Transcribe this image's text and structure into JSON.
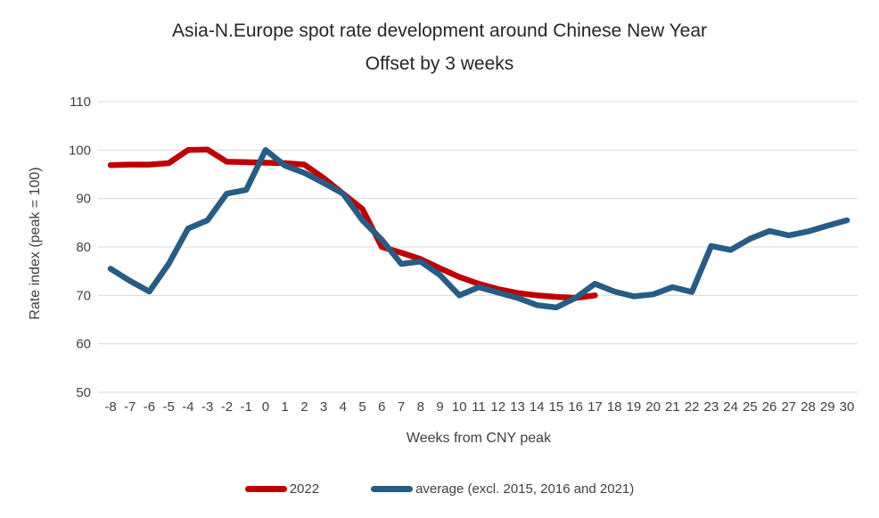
{
  "title": {
    "line1": "Asia-N.Europe spot rate development around Chinese New Year",
    "line2": "Offset by 3 weeks"
  },
  "chart_data": {
    "type": "line",
    "title": "Asia-N.Europe spot rate development around Chinese New Year — Offset by 3 weeks",
    "xlabel": "Weeks from CNY peak",
    "ylabel": "Rate index (peak = 100)",
    "ylim": [
      50,
      110
    ],
    "yticks": [
      50,
      60,
      70,
      80,
      90,
      100,
      110
    ],
    "grid": true,
    "legend_position": "bottom",
    "x": [
      -8,
      -7,
      -6,
      -5,
      -4,
      -3,
      -2,
      -1,
      0,
      1,
      2,
      3,
      4,
      5,
      6,
      7,
      8,
      9,
      10,
      11,
      12,
      13,
      14,
      15,
      16,
      17,
      18,
      19,
      20,
      21,
      22,
      23,
      24,
      25,
      26,
      27,
      28,
      29,
      30
    ],
    "series": [
      {
        "name": "2022",
        "color": "#C00000",
        "values": [
          96.9,
          97.0,
          97.0,
          97.3,
          100.0,
          100.1,
          97.6,
          97.5,
          97.4,
          97.3,
          97.0,
          94.2,
          91.0,
          87.8,
          80.0,
          78.8,
          77.5,
          75.6,
          73.8,
          72.4,
          71.3,
          70.5,
          70.0,
          69.7,
          69.5,
          70.0,
          null,
          null,
          null,
          null,
          null,
          null,
          null,
          null,
          null,
          null,
          null,
          null,
          null
        ]
      },
      {
        "name": "average (excl. 2015, 2016 and 2021)",
        "color": "#275C85",
        "values": [
          75.5,
          73.0,
          70.8,
          76.5,
          83.8,
          85.5,
          91.0,
          91.8,
          100.0,
          96.8,
          95.3,
          93.2,
          91.0,
          85.5,
          81.5,
          76.5,
          77.0,
          74.2,
          70.0,
          71.7,
          70.6,
          69.5,
          68.0,
          67.5,
          69.5,
          72.4,
          70.8,
          69.8,
          70.2,
          71.7,
          70.7,
          80.2,
          79.4,
          81.7,
          83.3,
          82.4,
          83.2,
          84.4,
          85.5
        ]
      }
    ],
    "gridline_color": "#D9D9D9",
    "tick_label_color": "#404040"
  },
  "legend": {
    "items": [
      {
        "label": "2022",
        "color": "#C00000"
      },
      {
        "label": "average (excl. 2015, 2016 and 2021)",
        "color": "#275C85"
      }
    ]
  }
}
